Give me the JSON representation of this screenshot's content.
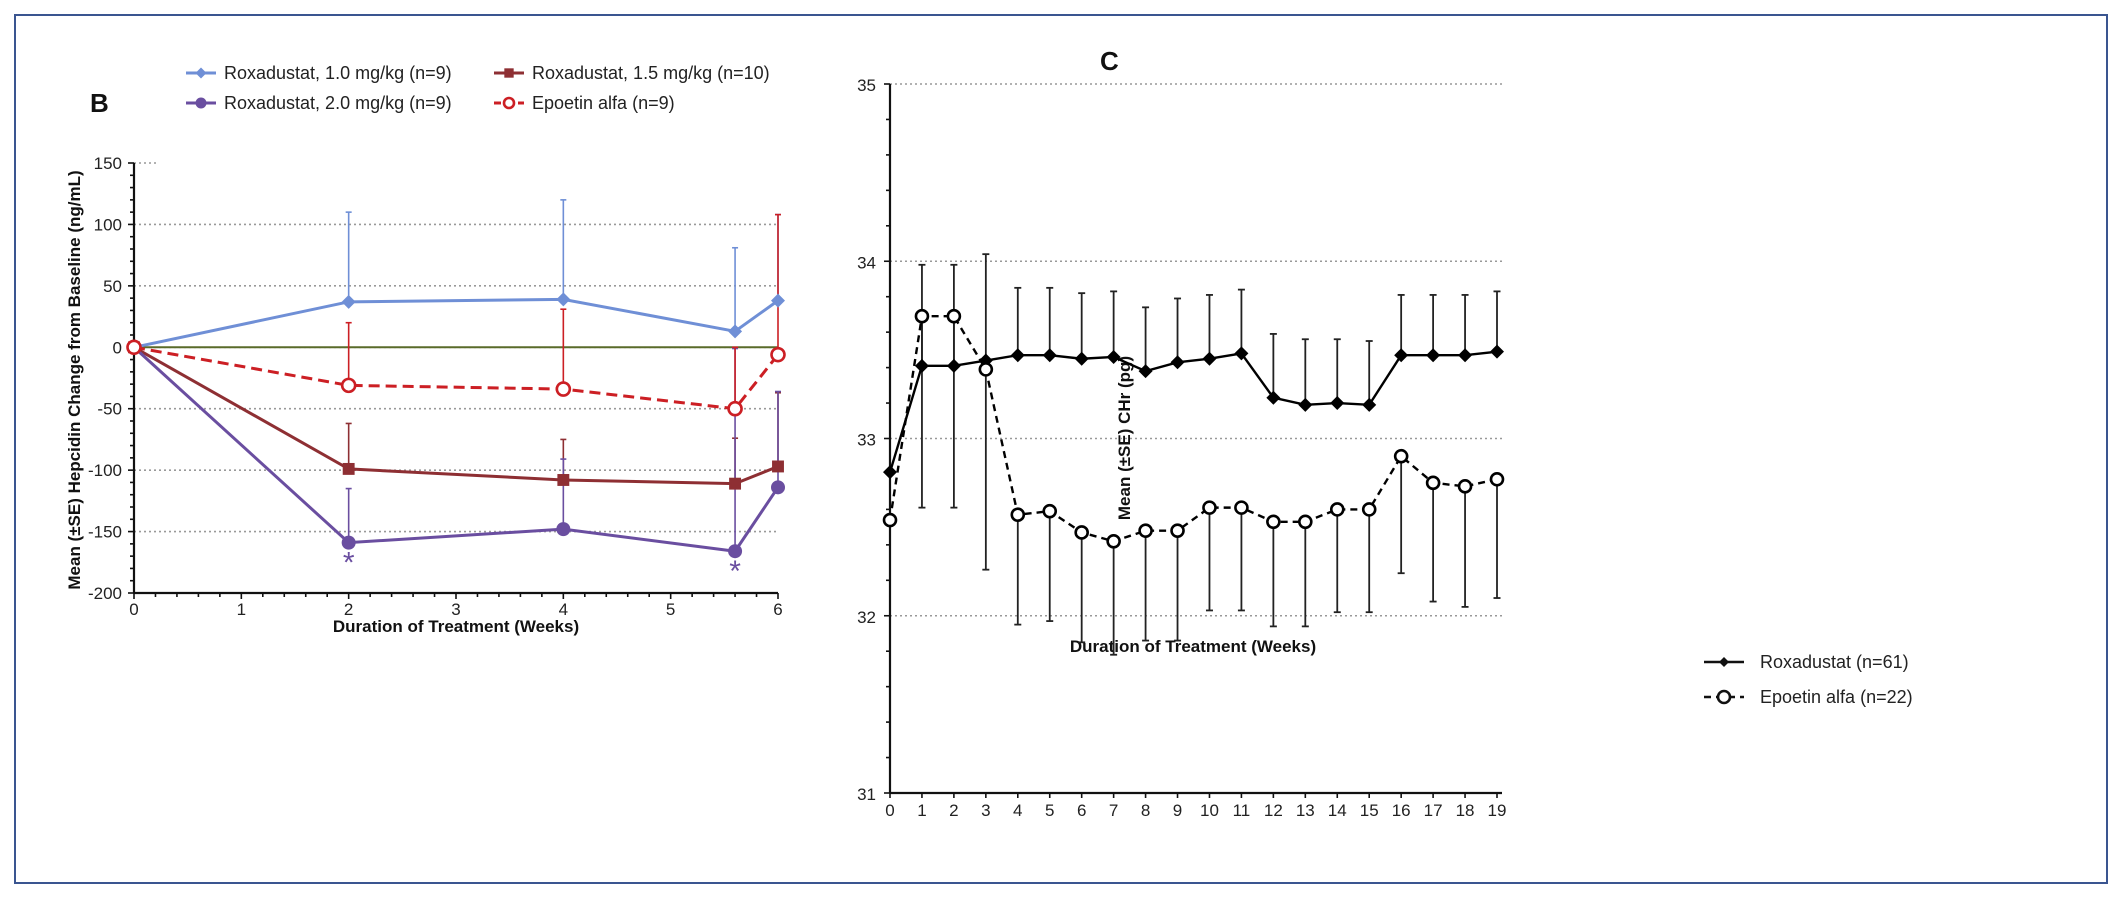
{
  "chart_data": [
    {
      "panel": "B",
      "type": "line",
      "title": "",
      "xlabel": "Duration of Treatment (Weeks)",
      "ylabel": "Mean (±SE) Hepcidin Change from Baseline (ng/mL)",
      "xlim": [
        0,
        6
      ],
      "ylim": [
        -200,
        150
      ],
      "xticks": [
        0,
        1,
        2,
        3,
        4,
        5,
        6
      ],
      "xtick_labels": [
        "0",
        "1",
        "2",
        "3",
        "4",
        "5",
        "6"
      ],
      "yticks": [
        150,
        100,
        50,
        0,
        -50,
        -100,
        -150,
        -200
      ],
      "ytick_labels": [
        "150",
        "100",
        "50",
        "0",
        "-50",
        "-100",
        "-150",
        "-200"
      ],
      "grid": "horizontal-dotted",
      "reference_line": {
        "y": 0,
        "color": "#5a6b2a"
      },
      "legend_position": "top",
      "series": [
        {
          "name": "Roxadustat, 1.0 mg/kg (n=9)",
          "color": "#6f8fd6",
          "marker": "diamond",
          "line": "solid",
          "x": [
            0,
            2,
            4,
            5.6,
            6
          ],
          "values": [
            0,
            37,
            39,
            13,
            38
          ],
          "error_upper": [
            null,
            110,
            120,
            81,
            108
          ]
        },
        {
          "name": "Roxadustat, 1.5 mg/kg (n=10)",
          "color": "#8e2f33",
          "marker": "square",
          "line": "solid",
          "x": [
            0,
            2,
            4,
            5.6,
            6
          ],
          "values": [
            0,
            -99,
            -108,
            -111,
            -97
          ],
          "error_upper": [
            null,
            -62,
            -75,
            -74,
            -37
          ]
        },
        {
          "name": "Roxadustat, 2.0 mg/kg (n=9)",
          "color": "#6a4ea0",
          "marker": "circle",
          "line": "solid",
          "x": [
            0,
            2,
            4,
            5.6,
            6
          ],
          "values": [
            0,
            -159,
            -148,
            -166,
            -114
          ],
          "error_upper": [
            null,
            -115,
            -91,
            -1,
            -36
          ]
        },
        {
          "name": "Epoetin alfa (n=9)",
          "color": "#cc1f24",
          "marker": "open-circle",
          "line": "dashed",
          "x": [
            0,
            2,
            4,
            5.6,
            6
          ],
          "values": [
            0,
            -31,
            -34,
            -50,
            -6
          ],
          "error_upper": [
            null,
            20,
            31,
            0,
            108
          ]
        }
      ],
      "annotations": [
        {
          "text": "*",
          "x": 2,
          "y": -175,
          "color": "#6a4ea0"
        },
        {
          "text": "*",
          "x": 5.6,
          "y": -182,
          "color": "#6a4ea0"
        }
      ]
    },
    {
      "panel": "C",
      "type": "line",
      "title": "",
      "xlabel": "Duration of Treatment (Weeks)",
      "ylabel": "Mean (±SE) CHr (pg)",
      "xlim": [
        0,
        19
      ],
      "ylim": [
        31,
        35
      ],
      "xticks": [
        0,
        1,
        2,
        3,
        4,
        5,
        6,
        7,
        8,
        9,
        10,
        11,
        12,
        13,
        14,
        15,
        16,
        17,
        18,
        19
      ],
      "xtick_labels": [
        "0",
        "1",
        "2",
        "3",
        "4",
        "5",
        "6",
        "7",
        "8",
        "9",
        "10",
        "11",
        "12",
        "13",
        "14",
        "15",
        "16",
        "17",
        "18",
        "19"
      ],
      "yticks": [
        35,
        34,
        33,
        32,
        31
      ],
      "ytick_labels": [
        "35",
        "34",
        "33",
        "32",
        "31"
      ],
      "grid": "horizontal-dotted",
      "legend_position": "bottom-right",
      "series": [
        {
          "name": "Roxadustat (n=61)",
          "color": "#000000",
          "marker": "diamond",
          "line": "solid",
          "x": [
            0,
            1,
            2,
            3,
            4,
            5,
            6,
            7,
            8,
            9,
            10,
            11,
            12,
            13,
            14,
            15,
            16,
            17,
            18,
            19
          ],
          "values": [
            32.81,
            33.41,
            33.41,
            33.44,
            33.47,
            33.47,
            33.45,
            33.46,
            33.38,
            33.43,
            33.45,
            33.48,
            33.23,
            33.19,
            33.2,
            33.19,
            33.47,
            33.47,
            33.47,
            33.49
          ],
          "error_upper": [
            null,
            33.98,
            33.98,
            34.04,
            33.85,
            33.85,
            33.82,
            33.83,
            33.74,
            33.79,
            33.81,
            33.84,
            33.59,
            33.56,
            33.56,
            33.55,
            33.81,
            33.81,
            33.81,
            33.83
          ]
        },
        {
          "name": "Epoetin alfa (n=22)",
          "color": "#000000",
          "marker": "open-circle",
          "line": "dashed",
          "x": [
            0,
            1,
            2,
            3,
            4,
            5,
            6,
            7,
            8,
            9,
            10,
            11,
            12,
            13,
            14,
            15,
            16,
            17,
            18,
            19
          ],
          "values": [
            32.54,
            33.69,
            33.69,
            33.39,
            32.57,
            32.59,
            32.47,
            32.42,
            32.48,
            32.48,
            32.61,
            32.61,
            32.53,
            32.53,
            32.6,
            32.6,
            32.9,
            32.75,
            32.73,
            32.77
          ],
          "error_lower": [
            null,
            32.61,
            32.61,
            32.26,
            31.95,
            31.97,
            31.85,
            31.78,
            31.86,
            31.86,
            32.03,
            32.03,
            31.94,
            31.94,
            32.02,
            32.02,
            32.24,
            32.08,
            32.05,
            32.1
          ]
        }
      ]
    }
  ],
  "frame": {
    "border_color": "#3a5590"
  }
}
